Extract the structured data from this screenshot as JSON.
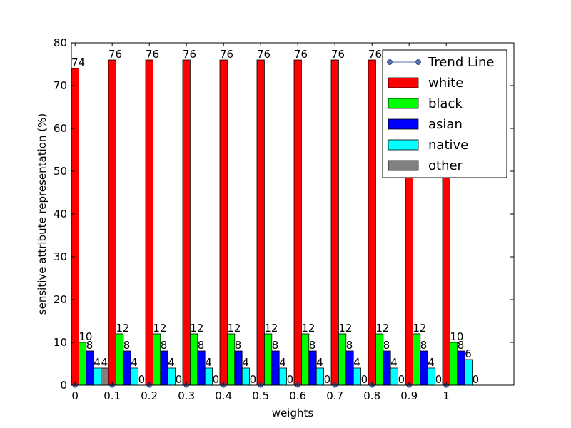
{
  "chart_data": {
    "type": "bar",
    "title": "",
    "xlabel": "weights",
    "ylabel": "sensitive attribute representation (%)",
    "ylim": [
      0,
      80
    ],
    "yticks": [
      0,
      10,
      20,
      30,
      40,
      50,
      60,
      70,
      80
    ],
    "categories": [
      "0",
      "0.1",
      "0.2",
      "0.3",
      "0.4",
      "0.5",
      "0.6",
      "0.7",
      "0.8",
      "0.9",
      "1"
    ],
    "legend_position": "top-right",
    "trend_line": {
      "name": "Trend Line",
      "values": [
        0,
        0,
        0,
        0,
        0,
        0,
        0,
        0,
        0,
        0,
        0
      ],
      "color": "#5a74b0"
    },
    "series": [
      {
        "name": "white",
        "color": "#ff0000",
        "values": [
          74,
          76,
          76,
          76,
          76,
          76,
          76,
          76,
          76,
          76,
          76
        ]
      },
      {
        "name": "black",
        "color": "#00ff00",
        "values": [
          10,
          12,
          12,
          12,
          12,
          12,
          12,
          12,
          12,
          12,
          10
        ]
      },
      {
        "name": "asian",
        "color": "#0000ff",
        "values": [
          8,
          8,
          8,
          8,
          8,
          8,
          8,
          8,
          8,
          8,
          8
        ]
      },
      {
        "name": "native",
        "color": "#00ffff",
        "values": [
          4,
          4,
          4,
          4,
          4,
          4,
          4,
          4,
          4,
          4,
          6
        ]
      },
      {
        "name": "other",
        "color": "#808080",
        "values": [
          4,
          0,
          0,
          0,
          0,
          0,
          0,
          0,
          0,
          0,
          0
        ]
      }
    ]
  }
}
